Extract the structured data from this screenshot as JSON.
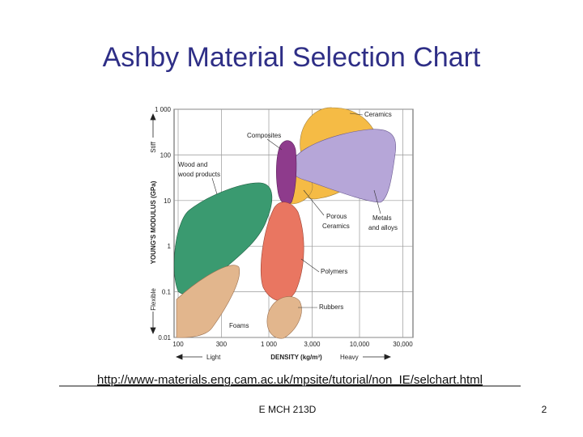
{
  "slide": {
    "title": "Ashby Material Selection Chart",
    "chart": {
      "y_axis_label": "YOUNG'S MODULUS (GPa)",
      "y_high": "Stiff",
      "y_low": "Flexible",
      "x_axis_label": "DENSITY (kg/m³)",
      "x_low": "Light",
      "x_high": "Heavy",
      "yticks": [
        "1 000",
        "100",
        "10",
        "1",
        "0.1",
        "0.01"
      ],
      "xticks": [
        "100",
        "300",
        "1 000",
        "3,000",
        "10,000",
        "30,000"
      ],
      "regions": {
        "ceramics": "Ceramics",
        "composites": "Composites",
        "wood": [
          "Wood and",
          "wood products"
        ],
        "porous_ceramics": [
          "Porous",
          "Ceramics"
        ],
        "metals": [
          "Metals",
          "and alloys"
        ],
        "polymers": "Polymers",
        "rubbers": "Rubbers",
        "foams": "Foams"
      }
    },
    "url": "http://www-materials.eng.cam.ac.uk/mpsite/tutorial/non_IE/selchart.html",
    "footer": "E MCH 213D",
    "page_number": "2"
  }
}
